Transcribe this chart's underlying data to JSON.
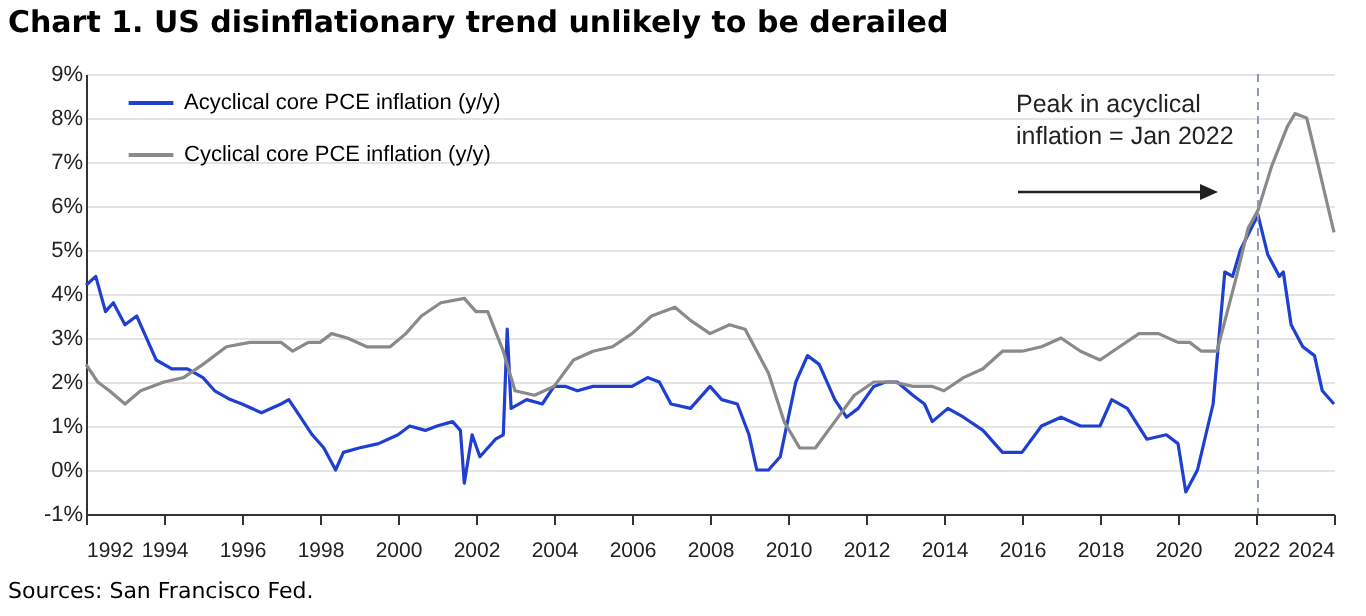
{
  "chart_data": {
    "type": "line",
    "title": "Chart 1. US disinflationary trend unlikely to be derailed",
    "annotations": [
      "Peak in acyclical inflation = Jan 2022",
      "Sources: San Francisco Fed."
    ],
    "series": [
      {
        "name": "Acyclical core PCE inflation (y/y)",
        "color": "#1f3fd0",
        "x": [
          1992,
          1992.25,
          1992.5,
          1992.7,
          1993,
          1993.3,
          1993.6,
          1993.8,
          1994.2,
          1994.6,
          1995,
          1995.3,
          1995.7,
          1996,
          1996.5,
          1997,
          1997.2,
          1997.5,
          1997.8,
          1998.1,
          1998.4,
          1998.6,
          1999,
          1999.5,
          2000,
          2000.3,
          2000.7,
          2001,
          2001.4,
          2001.6,
          2001.7,
          2001.9,
          2002.1,
          2002.5,
          2002.7,
          2002.8,
          2002.9,
          2003.3,
          2003.7,
          2004,
          2004.3,
          2004.6,
          2005,
          2005.5,
          2006,
          2006.4,
          2006.7,
          2007,
          2007.5,
          2008,
          2008.3,
          2008.7,
          2009,
          2009.2,
          2009.5,
          2009.8,
          2010.2,
          2010.5,
          2010.8,
          2011.2,
          2011.5,
          2011.8,
          2012.2,
          2012.5,
          2012.8,
          2013.2,
          2013.5,
          2013.7,
          2014.1,
          2014.5,
          2015,
          2015.5,
          2016,
          2016.5,
          2017,
          2017.5,
          2018,
          2018.3,
          2018.7,
          2019.2,
          2019.7,
          2020,
          2020.2,
          2020.5,
          2020.9,
          2021.2,
          2021.4,
          2021.6,
          2022.05,
          2022.3,
          2022.6,
          2022.7,
          2022.9,
          2023.2,
          2023.5,
          2023.7,
          2024
        ],
        "values": [
          4.2,
          4.4,
          3.6,
          3.8,
          3.3,
          3.5,
          2.9,
          2.5,
          2.3,
          2.3,
          2.1,
          1.8,
          1.6,
          1.5,
          1.3,
          1.5,
          1.6,
          1.2,
          0.8,
          0.5,
          0.0,
          0.4,
          0.5,
          0.6,
          0.8,
          1.0,
          0.9,
          1.0,
          1.1,
          0.9,
          -0.3,
          0.8,
          0.3,
          0.7,
          0.8,
          3.2,
          1.4,
          1.6,
          1.5,
          1.9,
          1.9,
          1.8,
          1.9,
          1.9,
          1.9,
          2.1,
          2.0,
          1.5,
          1.4,
          1.9,
          1.6,
          1.5,
          0.8,
          0.0,
          0.0,
          0.3,
          2.0,
          2.6,
          2.4,
          1.6,
          1.2,
          1.4,
          1.9,
          2.0,
          2.0,
          1.7,
          1.5,
          1.1,
          1.4,
          1.2,
          0.9,
          0.4,
          0.4,
          1.0,
          1.2,
          1.0,
          1.0,
          1.6,
          1.4,
          0.7,
          0.8,
          0.6,
          -0.5,
          0.0,
          1.5,
          4.5,
          4.4,
          5.0,
          5.8,
          4.9,
          4.4,
          4.5,
          3.3,
          2.8,
          2.6,
          1.8,
          1.5
        ]
      },
      {
        "name": "Cyclical core PCE inflation (y/y)",
        "color": "#8a8a8a",
        "x": [
          1992,
          1992.3,
          1992.6,
          1993,
          1993.4,
          1994,
          1994.5,
          1995,
          1995.6,
          1996.2,
          1997,
          1997.3,
          1997.7,
          1998,
          1998.3,
          1998.7,
          1999.2,
          1999.8,
          2000.2,
          2000.6,
          2001.1,
          2001.7,
          2002,
          2002.3,
          2002.7,
          2003,
          2003.5,
          2004,
          2004.5,
          2005,
          2005.5,
          2006,
          2006.5,
          2007.1,
          2007.5,
          2008,
          2008.5,
          2008.9,
          2009.5,
          2009.9,
          2010.3,
          2010.7,
          2011.2,
          2011.7,
          2012.2,
          2012.7,
          2013.2,
          2013.7,
          2014,
          2014.5,
          2015,
          2015.5,
          2016,
          2016.5,
          2017,
          2017.5,
          2018,
          2018.5,
          2019,
          2019.5,
          2020,
          2020.3,
          2020.6,
          2021,
          2021.5,
          2021.8,
          2022.05,
          2022.4,
          2022.8,
          2023,
          2023.3,
          2023.6,
          2024
        ],
        "values": [
          2.4,
          2.0,
          1.8,
          1.5,
          1.8,
          2.0,
          2.1,
          2.4,
          2.8,
          2.9,
          2.9,
          2.7,
          2.9,
          2.9,
          3.1,
          3.0,
          2.8,
          2.8,
          3.1,
          3.5,
          3.8,
          3.9,
          3.6,
          3.6,
          2.7,
          1.8,
          1.7,
          1.9,
          2.5,
          2.7,
          2.8,
          3.1,
          3.5,
          3.7,
          3.4,
          3.1,
          3.3,
          3.2,
          2.2,
          1.1,
          0.5,
          0.5,
          1.1,
          1.7,
          2.0,
          2.0,
          1.9,
          1.9,
          1.8,
          2.1,
          2.3,
          2.7,
          2.7,
          2.8,
          3.0,
          2.7,
          2.5,
          2.8,
          3.1,
          3.1,
          2.9,
          2.9,
          2.7,
          2.7,
          4.4,
          5.5,
          5.9,
          6.9,
          7.8,
          8.1,
          8.0,
          6.9,
          5.4
        ]
      }
    ],
    "xlim": [
      1992,
      2024
    ],
    "xticks": [
      1992,
      1994,
      1996,
      1998,
      2000,
      2002,
      2004,
      2006,
      2008,
      2010,
      2012,
      2014,
      2016,
      2018,
      2020,
      2022,
      2024
    ],
    "ylim": [
      -1,
      9
    ],
    "yticks": [
      {
        "value": -1,
        "label": "-1%"
      },
      {
        "value": 0,
        "label": "0%"
      },
      {
        "value": 1,
        "label": "1%"
      },
      {
        "value": 2,
        "label": "2%"
      },
      {
        "value": 3,
        "label": "3%"
      },
      {
        "value": 4,
        "label": "4%"
      },
      {
        "value": 5,
        "label": "5%"
      },
      {
        "value": 6,
        "label": "6%"
      },
      {
        "value": 7,
        "label": "7%"
      },
      {
        "value": 8,
        "label": "8%"
      },
      {
        "value": 9,
        "label": "9%"
      }
    ],
    "ref_lines": [
      {
        "axis": "x",
        "value": 2022.05,
        "color": "#8899bb",
        "line_style": "dashed"
      }
    ],
    "grid": "y",
    "legend": "top left"
  }
}
